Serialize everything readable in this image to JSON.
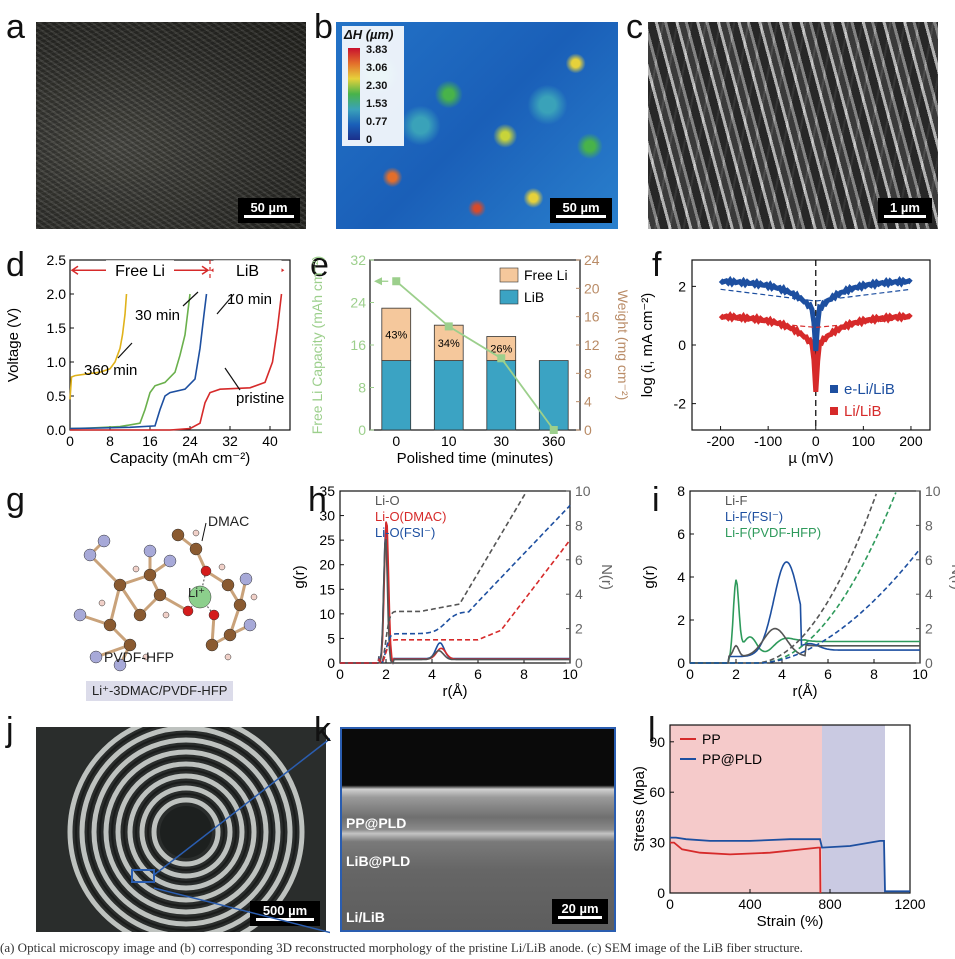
{
  "panels": {
    "a": {
      "label": "a",
      "scale": "50 µm"
    },
    "b": {
      "label": "b",
      "scale": "50 µm",
      "colorbar_title": "ΔH (µm)",
      "colorbar_ticks": [
        "3.83",
        "3.06",
        "2.30",
        "1.53",
        "0.77",
        "0"
      ]
    },
    "c": {
      "label": "c",
      "scale": "1 µm"
    },
    "d": {
      "label": "d"
    },
    "e": {
      "label": "e"
    },
    "f": {
      "label": "f"
    },
    "g": {
      "label": "g",
      "molecule_labels": [
        "DMAC",
        "Li⁺",
        "PVDF-HFP"
      ],
      "title_box": "Li⁺-3DMAC/PVDF-HFP"
    },
    "h": {
      "label": "h"
    },
    "i": {
      "label": "i"
    },
    "j": {
      "label": "j",
      "scale": "500 µm"
    },
    "k": {
      "label": "k",
      "scale": "20 µm",
      "layers": [
        "PP@PLD",
        "LiB@PLD",
        "Li/LiB"
      ]
    },
    "l": {
      "label": "l"
    }
  },
  "colors": {
    "red": "#d62a2a",
    "blue": "#1d4fa0",
    "gold": "#e0b21a",
    "green": "#6ab04c",
    "tan": "#f5c89c",
    "teal": "#3ba3c3",
    "lightgreen": "#9ccf8c",
    "brown": "#b98b66",
    "grey": "#555555",
    "dkgreen": "#2e9a5b",
    "pink": "#f2b8b8",
    "lavender": "#b8b8d8"
  },
  "chart_data": [
    {
      "id": "d",
      "type": "line",
      "xlabel": "Capacity (mAh cm⁻²)",
      "ylabel": "Voltage (V)",
      "xlim": [
        0,
        44
      ],
      "ylim": [
        0,
        2.5
      ],
      "xticks": [
        0,
        8,
        16,
        24,
        32,
        40
      ],
      "yticks": [
        0.0,
        0.5,
        1.0,
        1.5,
        2.0,
        2.5
      ],
      "regions": [
        {
          "label": "Free Li",
          "from": 0,
          "to": 28
        },
        {
          "label": "LiB",
          "from": 28,
          "to": 43
        }
      ],
      "series": [
        {
          "name": "360 min",
          "color": "gold",
          "x": [
            0,
            0.3,
            1,
            3,
            6,
            8,
            9,
            10,
            10.5,
            11,
            11.3
          ],
          "y": [
            0.45,
            0.78,
            0.8,
            0.82,
            0.85,
            0.9,
            1.0,
            1.2,
            1.4,
            1.7,
            2.0
          ]
        },
        {
          "name": "30 min",
          "color": "green",
          "x": [
            0,
            4,
            10,
            14,
            15,
            16,
            17,
            19,
            21,
            22,
            23,
            23.5,
            24
          ],
          "y": [
            0.02,
            0.03,
            0.05,
            0.1,
            0.3,
            0.55,
            0.65,
            0.7,
            0.85,
            1.1,
            1.4,
            1.7,
            2.0
          ]
        },
        {
          "name": "10 min",
          "color": "blue",
          "x": [
            0,
            6,
            12,
            17,
            18,
            19,
            20,
            23,
            25,
            26,
            26.8,
            27.3
          ],
          "y": [
            0.02,
            0.03,
            0.04,
            0.06,
            0.3,
            0.5,
            0.55,
            0.6,
            0.75,
            1.2,
            1.7,
            2.0
          ]
        },
        {
          "name": "pristine",
          "color": "red",
          "x": [
            0,
            10,
            20,
            24,
            26,
            27,
            28,
            30,
            36,
            39,
            40.5,
            41.5,
            42.3
          ],
          "y": [
            0.0,
            0.0,
            0.0,
            0.02,
            0.1,
            0.4,
            0.55,
            0.6,
            0.62,
            0.7,
            1.0,
            1.5,
            2.0
          ]
        }
      ],
      "annotations": [
        "360 min",
        "30 min",
        "10 min",
        "pristine"
      ]
    },
    {
      "id": "e",
      "type": "bar",
      "xlabel": "Polished time (minutes)",
      "ylabel_left": "Free Li Capacity (mAh cm⁻²)",
      "ylabel_right": "Weight (mg cm⁻²)",
      "categories": [
        "0",
        "10",
        "30",
        "360"
      ],
      "ylim_left": [
        0,
        32
      ],
      "yticks_left": [
        0,
        8,
        16,
        24,
        32
      ],
      "ylim_right": [
        0,
        24
      ],
      "yticks_right": [
        0,
        4,
        8,
        12,
        16,
        20,
        24
      ],
      "series": [
        {
          "name": "LiB",
          "color": "teal",
          "values": [
            9.8,
            9.8,
            9.8,
            9.8
          ]
        },
        {
          "name": "Free Li",
          "color": "tan",
          "values": [
            7.4,
            5.0,
            3.4,
            0.0
          ]
        }
      ],
      "percent_labels": [
        "43%",
        "34%",
        "26%",
        ""
      ],
      "line": {
        "color": "lightgreen",
        "values": [
          28.0,
          19.5,
          13.5,
          0.0
        ]
      }
    },
    {
      "id": "f",
      "type": "line",
      "xlabel": "µ (mV)",
      "ylabel": "log (i, mA cm⁻²)",
      "xlim": [
        -260,
        240
      ],
      "ylim": [
        -2.9,
        2.9
      ],
      "xticks": [
        -200,
        -100,
        0,
        100,
        200
      ],
      "yticks": [
        -2,
        0,
        2
      ],
      "series": [
        {
          "name": "e-Li/LiB",
          "color": "blue"
        },
        {
          "name": "Li/LiB",
          "color": "red"
        }
      ]
    },
    {
      "id": "h",
      "type": "line",
      "xlabel": "r(Å)",
      "ylabel_left": "g(r)",
      "ylabel_right": "N(r)",
      "xlim": [
        0,
        10
      ],
      "ylim_left": [
        0,
        35
      ],
      "ylim_right": [
        0,
        10
      ],
      "xticks": [
        0,
        2,
        4,
        6,
        8,
        10
      ],
      "yticks_left": [
        0,
        5,
        10,
        15,
        20,
        25,
        30,
        35
      ],
      "yticks_right": [
        0,
        2,
        4,
        6,
        8,
        10
      ],
      "series": [
        {
          "name": "Li-O",
          "color": "grey"
        },
        {
          "name": "Li-O(DMAC)",
          "color": "red"
        },
        {
          "name": "Li-O(FSI⁻)",
          "color": "blue"
        }
      ]
    },
    {
      "id": "i",
      "type": "line",
      "xlabel": "r(Å)",
      "ylabel_left": "g(r)",
      "ylabel_right": "N(r)",
      "xlim": [
        0,
        10
      ],
      "ylim_left": [
        0,
        8
      ],
      "ylim_right": [
        0,
        10
      ],
      "xticks": [
        0,
        2,
        4,
        6,
        8,
        10
      ],
      "yticks_left": [
        0,
        2,
        4,
        6,
        8
      ],
      "yticks_right": [
        0,
        2,
        4,
        6,
        8,
        10
      ],
      "series": [
        {
          "name": "Li-F",
          "color": "grey"
        },
        {
          "name": "Li-F(FSI⁻)",
          "color": "blue"
        },
        {
          "name": "Li-F(PVDF-HFP)",
          "color": "dkgreen"
        }
      ]
    },
    {
      "id": "l",
      "type": "line",
      "xlabel": "Strain (%)",
      "ylabel": "Stress (Mpa)",
      "xlim": [
        0,
        1200
      ],
      "ylim": [
        0,
        100
      ],
      "xticks": [
        0,
        400,
        800,
        1200
      ],
      "yticks": [
        0,
        30,
        60,
        90
      ],
      "series": [
        {
          "name": "PP",
          "color": "red",
          "x": [
            0,
            20,
            60,
            150,
            300,
            500,
            740,
            750,
            752
          ],
          "y": [
            30,
            30,
            26,
            24,
            23,
            24,
            27,
            27,
            0
          ]
        },
        {
          "name": "PP@PLD",
          "color": "blue",
          "x": [
            0,
            30,
            80,
            200,
            400,
            600,
            750,
            760,
            900,
            1050,
            1070,
            1075,
            1200
          ],
          "y": [
            33,
            33,
            32,
            31,
            31,
            32,
            32,
            27,
            28,
            31,
            31,
            1,
            1
          ]
        }
      ],
      "shaded": [
        {
          "from": 0,
          "to": 760,
          "color": "pink"
        },
        {
          "from": 760,
          "to": 1075,
          "color": "lavender"
        }
      ]
    }
  ],
  "caption": "(a) Optical microscopy image and (b) corresponding 3D reconstructed morphology of the pristine Li/LiB anode. (c) SEM image of the LiB fiber structure."
}
